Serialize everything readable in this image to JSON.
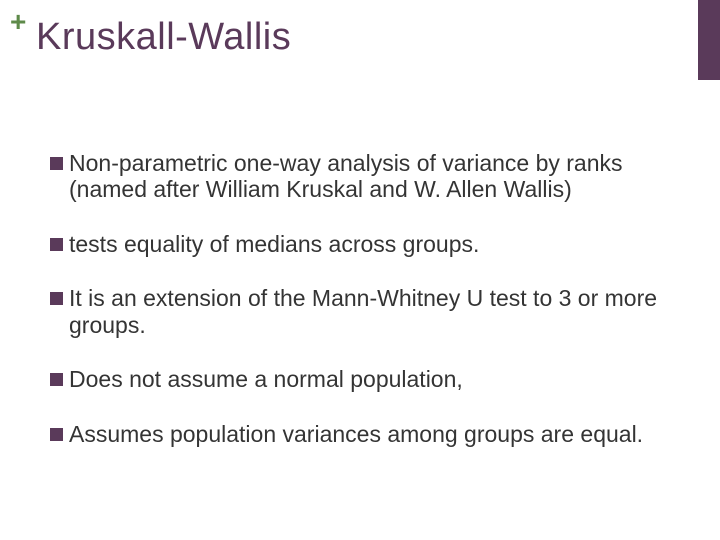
{
  "theme": {
    "accent": "#5a3a5a",
    "plus_color": "#5e8a4a",
    "text_color": "#343434",
    "background": "#ffffff",
    "title_fontsize": 38,
    "body_fontsize": 23,
    "bullet_size": 13
  },
  "plus_symbol": "+",
  "title": "Kruskall-Wallis",
  "bullets": [
    {
      "text": "Non-parametric one-way analysis of variance by ranks (named after William Kruskal and W. Allen Wallis)"
    },
    {
      "text": "tests equality of medians across groups."
    },
    {
      "text": "It is an extension of the Mann-Whitney U test to 3 or more groups."
    },
    {
      "text": "Does not assume a normal population,"
    },
    {
      "text": "Assumes population variances among groups are equal."
    }
  ]
}
